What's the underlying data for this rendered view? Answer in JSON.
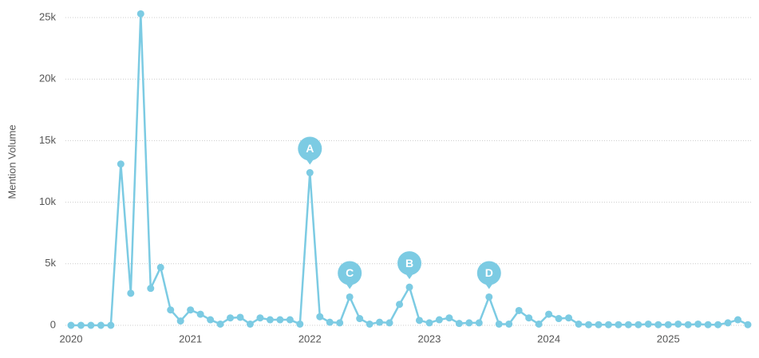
{
  "chart_data": {
    "type": "line",
    "y_label": "Mention Volume",
    "categories": [
      "2020",
      null,
      null,
      null,
      null,
      null,
      null,
      null,
      null,
      null,
      null,
      null,
      "2021",
      null,
      null,
      null,
      null,
      null,
      null,
      null,
      null,
      null,
      null,
      null,
      "2022",
      null,
      null,
      null,
      null,
      null,
      null,
      null,
      null,
      null,
      null,
      null,
      "2023",
      null,
      null,
      null,
      null,
      null,
      null,
      null,
      null,
      null,
      null,
      null,
      "2024",
      null,
      null,
      null,
      null,
      null,
      null,
      null,
      null,
      null,
      null,
      null,
      "2025",
      null,
      null,
      null,
      null,
      null,
      null,
      null,
      null
    ],
    "series": [
      {
        "name": "Mention Volume",
        "color": "#7ccbe3",
        "values": [
          0,
          0,
          0,
          0,
          0,
          13100,
          2600,
          25300,
          3000,
          4700,
          1250,
          350,
          1250,
          900,
          450,
          100,
          600,
          650,
          100,
          600,
          450,
          450,
          450,
          100,
          12400,
          700,
          250,
          200,
          2300,
          550,
          100,
          250,
          200,
          1700,
          3100,
          400,
          200,
          450,
          600,
          150,
          200,
          200,
          2300,
          100,
          100,
          1200,
          600,
          100,
          900,
          550,
          600,
          100,
          50,
          50,
          50,
          50,
          50,
          50,
          100,
          50,
          50,
          100,
          50,
          100,
          50,
          50,
          200,
          450,
          50
        ]
      }
    ],
    "annotations": [
      {
        "text": "A",
        "x": 24
      },
      {
        "text": "C",
        "x": 28
      },
      {
        "text": "B",
        "x": 34
      },
      {
        "text": "D",
        "x": 42
      }
    ],
    "ylim": [
      0,
      25000
    ],
    "yticks": [
      0,
      {
        "value": 5000,
        "label": "5k"
      },
      {
        "value": 10000,
        "label": "10k"
      },
      {
        "value": 15000,
        "label": "15k"
      },
      {
        "value": 20000,
        "label": "20k"
      },
      {
        "value": 25000,
        "label": "25k"
      }
    ],
    "grid": true
  }
}
